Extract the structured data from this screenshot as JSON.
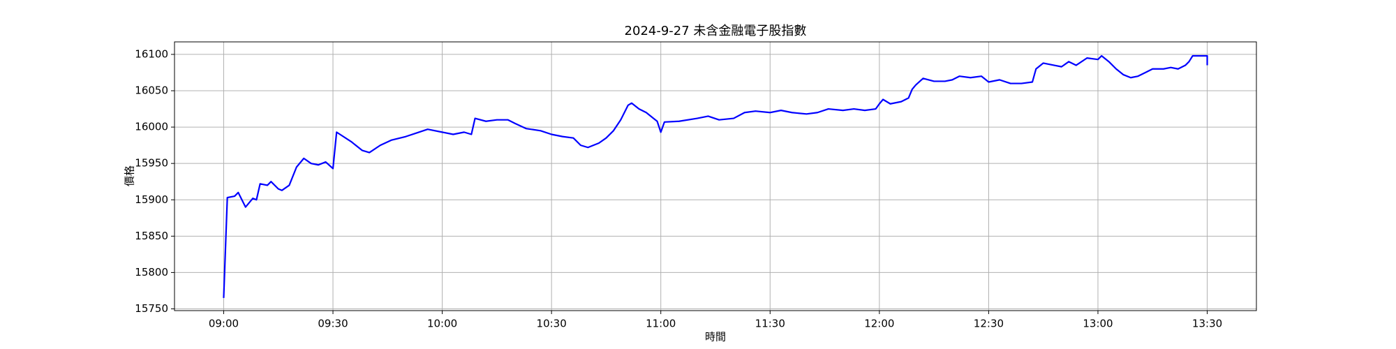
{
  "chart_data": {
    "type": "line",
    "title": "2024-9-27 未含金融電子股指數",
    "xlabel": "時間",
    "ylabel": "價格",
    "x": [
      "09:00",
      "09:01",
      "09:03",
      "09:04",
      "09:06",
      "09:08",
      "09:09",
      "09:10",
      "09:12",
      "09:13",
      "09:15",
      "09:16",
      "09:18",
      "09:20",
      "09:22",
      "09:24",
      "09:26",
      "09:28",
      "09:30",
      "09:31",
      "09:35",
      "09:38",
      "09:40",
      "09:43",
      "09:46",
      "09:50",
      "09:53",
      "09:56",
      "10:00",
      "10:03",
      "10:06",
      "10:08",
      "10:09",
      "10:12",
      "10:15",
      "10:18",
      "10:20",
      "10:23",
      "10:27",
      "10:30",
      "10:33",
      "10:36",
      "10:38",
      "10:40",
      "10:43",
      "10:45",
      "10:47",
      "10:49",
      "10:51",
      "10:52",
      "10:54",
      "10:56",
      "10:58",
      "10:59",
      "11:00",
      "11:01",
      "11:05",
      "11:10",
      "11:13",
      "11:16",
      "11:20",
      "11:23",
      "11:26",
      "11:30",
      "11:33",
      "11:36",
      "11:40",
      "11:43",
      "11:46",
      "11:50",
      "11:53",
      "11:56",
      "11:59",
      "12:00",
      "12:01",
      "12:03",
      "12:06",
      "12:08",
      "12:09",
      "12:10",
      "12:12",
      "12:15",
      "12:18",
      "12:20",
      "12:22",
      "12:25",
      "12:28",
      "12:30",
      "12:33",
      "12:36",
      "12:39",
      "12:42",
      "12:43",
      "12:45",
      "12:48",
      "12:50",
      "12:52",
      "12:54",
      "12:57",
      "13:00",
      "13:01",
      "13:03",
      "13:05",
      "13:07",
      "13:09",
      "13:11",
      "13:13",
      "13:15",
      "13:18",
      "13:20",
      "13:22",
      "13:24",
      "13:25",
      "13:26",
      "13:29",
      "13:30",
      "13:30"
    ],
    "series": [
      {
        "color": "#0000ff",
        "values": [
          15765,
          15903,
          15905,
          15910,
          15890,
          15902,
          15900,
          15922,
          15920,
          15925,
          15915,
          15913,
          15920,
          15945,
          15957,
          15950,
          15948,
          15952,
          15943,
          15993,
          15980,
          15968,
          15965,
          15975,
          15982,
          15987,
          15992,
          15997,
          15993,
          15990,
          15993,
          15990,
          16012,
          16008,
          16010,
          16010,
          16005,
          15998,
          15995,
          15990,
          15987,
          15985,
          15975,
          15972,
          15978,
          15985,
          15995,
          16010,
          16030,
          16033,
          16025,
          16020,
          16012,
          16008,
          15993,
          16007,
          16008,
          16012,
          16015,
          16010,
          16012,
          16020,
          16022,
          16020,
          16023,
          16020,
          16018,
          16020,
          16025,
          16023,
          16025,
          16023,
          16025,
          16032,
          16038,
          16032,
          16035,
          16040,
          16052,
          16058,
          16067,
          16063,
          16063,
          16065,
          16070,
          16068,
          16070,
          16062,
          16065,
          16060,
          16060,
          16062,
          16080,
          16088,
          16085,
          16083,
          16090,
          16085,
          16095,
          16093,
          16098,
          16090,
          16080,
          16072,
          16068,
          16070,
          16075,
          16080,
          16080,
          16082,
          16080,
          16085,
          16090,
          16098,
          16098,
          16098,
          16085
        ]
      }
    ],
    "xlim": [
      "08:46:30",
      "13:43:30"
    ],
    "xticks": [
      "09:00",
      "09:30",
      "10:00",
      "10:30",
      "11:00",
      "11:30",
      "12:00",
      "12:30",
      "13:00",
      "13:30"
    ],
    "ylim": [
      15747.6,
      16117.2
    ],
    "yticks": [
      15750,
      15800,
      15850,
      15900,
      15950,
      16000,
      16050,
      16100
    ],
    "grid": true
  }
}
